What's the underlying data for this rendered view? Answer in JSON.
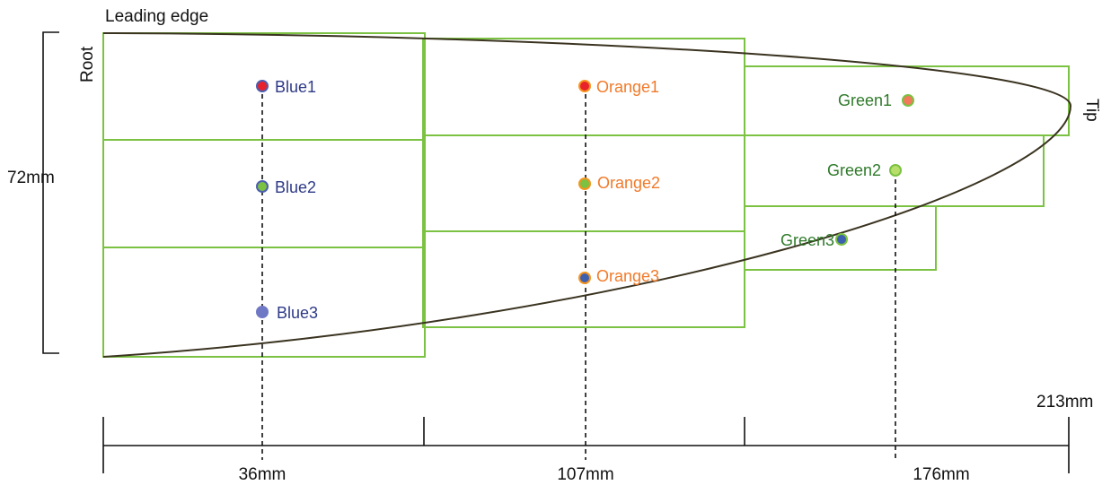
{
  "labels": {
    "leading_edge": "Leading edge",
    "root": "Root",
    "tip": "Tip",
    "chord": "72mm",
    "span_end": "213mm"
  },
  "columns": [
    {
      "name": "blue",
      "distance": "36mm",
      "text_color": "#2e3a87"
    },
    {
      "name": "orange",
      "distance": "107mm",
      "text_color": "#f07a2a"
    },
    {
      "name": "green",
      "distance": "176mm",
      "text_color": "#2f7a2a"
    }
  ],
  "points": [
    {
      "id": "blue1",
      "label": "Blue1",
      "fill": "#e8232b",
      "stroke": "#4c5fb0",
      "color": "#2e3a87"
    },
    {
      "id": "blue2",
      "label": "Blue2",
      "fill": "#7bc142",
      "stroke": "#4c5fb0",
      "color": "#2e3a87"
    },
    {
      "id": "blue3",
      "label": "Blue3",
      "fill": "#6f78c4",
      "stroke": "#6f78c4",
      "color": "#2e3a87"
    },
    {
      "id": "orange1",
      "label": "Orange1",
      "fill": "#e8232b",
      "stroke": "#f7941d",
      "color": "#f07a2a"
    },
    {
      "id": "orange2",
      "label": "Orange2",
      "fill": "#7bc142",
      "stroke": "#f7941d",
      "color": "#f07a2a"
    },
    {
      "id": "orange3",
      "label": "Orange3",
      "fill": "#3c5fb0",
      "stroke": "#f7941d",
      "color": "#f07a2a"
    },
    {
      "id": "green1",
      "label": "Green1",
      "fill": "#f07a5a",
      "stroke": "#7bc142",
      "color": "#2f7a2a"
    },
    {
      "id": "green2",
      "label": "Green2",
      "fill": "#b7de6a",
      "stroke": "#7bc142",
      "color": "#2f7a2a"
    },
    {
      "id": "green3",
      "label": "Green3",
      "fill": "#3c5fb0",
      "stroke": "#7bc142",
      "color": "#2f7a2a"
    }
  ]
}
